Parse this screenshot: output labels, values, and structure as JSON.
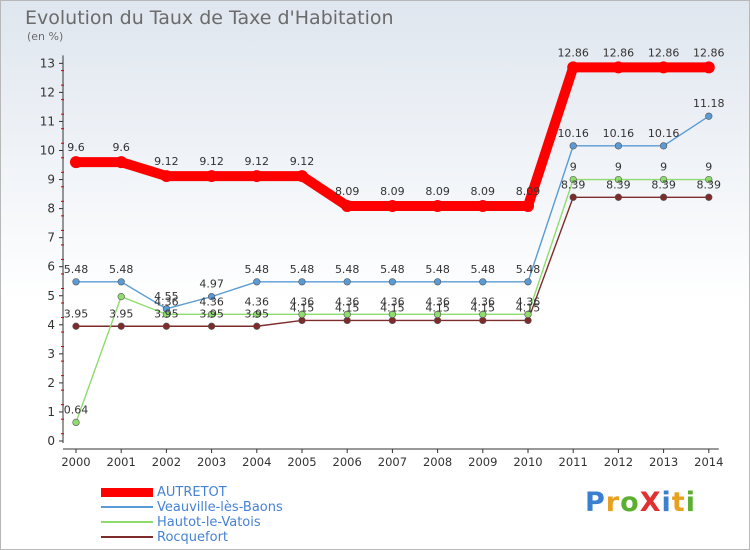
{
  "title": "Evolution du Taux de Taxe d'Habitation",
  "subtitle": "(en %)",
  "logo": "ProXiti",
  "chart_data": {
    "type": "line",
    "x": [
      "2000",
      "2001",
      "2002",
      "2003",
      "2004",
      "2005",
      "2006",
      "2007",
      "2008",
      "2009",
      "2010",
      "2011",
      "2012",
      "2013",
      "2014"
    ],
    "yticks": [
      0,
      1,
      2,
      3,
      4,
      5,
      6,
      7,
      8,
      9,
      10,
      11,
      12,
      13
    ],
    "ylim": [
      0,
      13
    ],
    "grid": false,
    "legend_position": "bottom-left",
    "series": [
      {
        "name": "AUTRETOT",
        "color": "#ff0000",
        "values": [
          9.6,
          9.6,
          9.12,
          9.12,
          9.12,
          9.12,
          8.09,
          8.09,
          8.09,
          8.09,
          8.09,
          12.86,
          12.86,
          12.86,
          12.86
        ],
        "labels": [
          "9.6",
          "9.6",
          "9.12",
          "9.12",
          "9.12",
          "9.12",
          "8.09",
          "8.09",
          "8.09",
          "8.09",
          "8.09",
          "12.86",
          "12.86",
          "12.86",
          "12.86"
        ]
      },
      {
        "name": "Veauville-lès-Baons",
        "color": "#5a9bd5",
        "values": [
          5.48,
          5.48,
          4.55,
          4.97,
          5.48,
          5.48,
          5.48,
          5.48,
          5.48,
          5.48,
          5.48,
          10.16,
          10.16,
          10.16,
          11.18
        ],
        "labels": [
          "5.48",
          "5.48",
          "4.55",
          "4.97",
          "5.48",
          "5.48",
          "5.48",
          "5.48",
          "5.48",
          "5.48",
          "5.48",
          "10.16",
          "10.16",
          "10.16",
          "11.18"
        ]
      },
      {
        "name": "Hautot-le-Vatois",
        "color": "#8fdc6e",
        "values": [
          0.64,
          4.97,
          4.36,
          4.36,
          4.36,
          4.36,
          4.36,
          4.36,
          4.36,
          4.36,
          4.36,
          9,
          9,
          9,
          9
        ],
        "labels": [
          "0.64",
          "",
          "4.36",
          "4.36",
          "4.36",
          "4.36",
          "4.36",
          "4.36",
          "4.36",
          "4.36",
          "4.36",
          "9",
          "9",
          "9",
          "9"
        ]
      },
      {
        "name": "Rocquefort",
        "color": "#7d2b2b",
        "values": [
          3.95,
          3.95,
          3.95,
          3.95,
          3.95,
          4.15,
          4.15,
          4.15,
          4.15,
          4.15,
          4.15,
          8.39,
          8.39,
          8.39,
          8.39
        ],
        "labels": [
          "3.95",
          "3.95",
          "3.95",
          "3.95",
          "3.95",
          "4.15",
          "4.15",
          "4.15",
          "4.15",
          "4.15",
          "4.15",
          "8.39",
          "8.39",
          "8.39",
          "8.39"
        ]
      }
    ]
  }
}
